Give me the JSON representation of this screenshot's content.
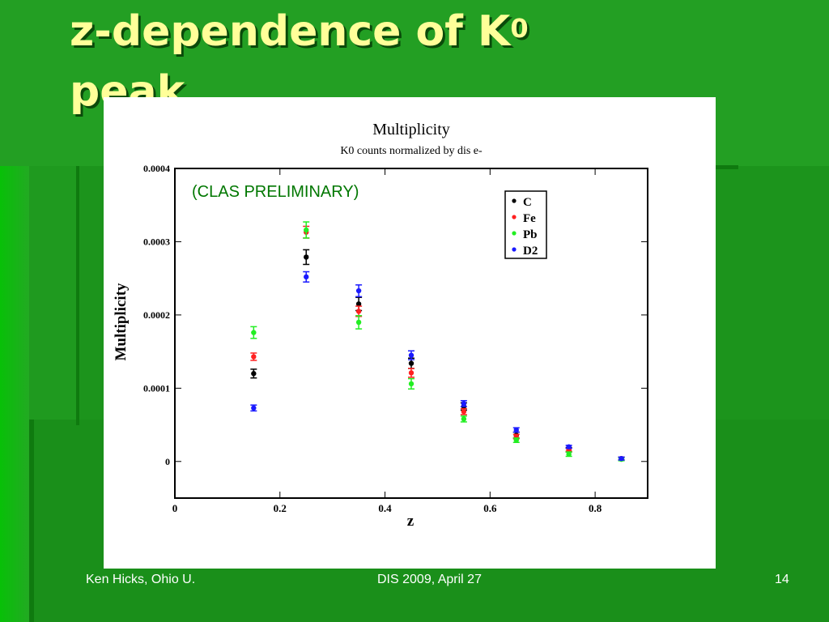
{
  "slide": {
    "title_main": "z-dependence of K",
    "title_sup": "0",
    "title_line2": "peak"
  },
  "footer": {
    "left": "Ken Hicks, Ohio U.",
    "center": "DIS 2009, April 27",
    "right": "14"
  },
  "colors": {
    "background": "#1f9a1f",
    "title": "#ffff99",
    "annotation": "#007700"
  },
  "chart_data": {
    "type": "scatter",
    "title": "Multiplicity",
    "subtitle": "K0 counts normalized by dis e-",
    "xlabel": "z",
    "ylabel": "Multiplicity",
    "annotation": "(CLAS PRELIMINARY)",
    "xlim": [
      0,
      0.9
    ],
    "ylim": [
      -5e-05,
      0.0004
    ],
    "x_ticks": [
      {
        "value": 0,
        "label": "0"
      },
      {
        "value": 0.2,
        "label": "0.2"
      },
      {
        "value": 0.4,
        "label": "0.4"
      },
      {
        "value": 0.6,
        "label": "0.6"
      },
      {
        "value": 0.8,
        "label": "0.8"
      }
    ],
    "y_ticks": [
      {
        "value": 0,
        "label": "0"
      },
      {
        "value": 0.0001,
        "label": "0.0001"
      },
      {
        "value": 0.0002,
        "label": "0.0002"
      },
      {
        "value": 0.0003,
        "label": "0.0003"
      },
      {
        "value": 0.0004,
        "label": "0.0004"
      }
    ],
    "legend_position": "top-right",
    "grid": false,
    "series": [
      {
        "name": "C",
        "color": "#000000",
        "points": [
          {
            "x": 0.15,
            "y": 0.00012,
            "err": 6e-06
          },
          {
            "x": 0.25,
            "y": 0.000279,
            "err": 1e-05
          },
          {
            "x": 0.35,
            "y": 0.000215,
            "err": 9e-06
          },
          {
            "x": 0.45,
            "y": 0.000134,
            "err": 7e-06
          },
          {
            "x": 0.55,
            "y": 7.5e-05,
            "err": 5e-06
          },
          {
            "x": 0.65,
            "y": 3.6e-05,
            "err": 4e-06
          },
          {
            "x": 0.75,
            "y": 1.6e-05,
            "err": 3e-06
          },
          {
            "x": 0.85,
            "y": 4e-06,
            "err": 2e-06
          }
        ]
      },
      {
        "name": "Fe",
        "color": "#ff2020",
        "points": [
          {
            "x": 0.15,
            "y": 0.000143,
            "err": 5e-06
          },
          {
            "x": 0.25,
            "y": 0.000313,
            "err": 8e-06
          },
          {
            "x": 0.35,
            "y": 0.000205,
            "err": 7e-06
          },
          {
            "x": 0.45,
            "y": 0.000121,
            "err": 6e-06
          },
          {
            "x": 0.55,
            "y": 6.8e-05,
            "err": 4e-06
          },
          {
            "x": 0.65,
            "y": 3.4e-05,
            "err": 3e-06
          },
          {
            "x": 0.75,
            "y": 1.6e-05,
            "err": 2e-06
          },
          {
            "x": 0.85,
            "y": 4e-06,
            "err": 2e-06
          }
        ]
      },
      {
        "name": "Pb",
        "color": "#22ee22",
        "points": [
          {
            "x": 0.15,
            "y": 0.000176,
            "err": 8e-06
          },
          {
            "x": 0.25,
            "y": 0.000316,
            "err": 1.1e-05
          },
          {
            "x": 0.35,
            "y": 0.00019,
            "err": 9e-06
          },
          {
            "x": 0.45,
            "y": 0.000106,
            "err": 7e-06
          },
          {
            "x": 0.55,
            "y": 5.8e-05,
            "err": 4e-06
          },
          {
            "x": 0.65,
            "y": 2.9e-05,
            "err": 3e-06
          },
          {
            "x": 0.75,
            "y": 1e-05,
            "err": 3e-06
          },
          {
            "x": 0.85,
            "y": 3e-06,
            "err": 2e-06
          }
        ]
      },
      {
        "name": "D2",
        "color": "#1a1aff",
        "points": [
          {
            "x": 0.15,
            "y": 7.3e-05,
            "err": 4e-06
          },
          {
            "x": 0.25,
            "y": 0.000252,
            "err": 7e-06
          },
          {
            "x": 0.35,
            "y": 0.000233,
            "err": 8e-06
          },
          {
            "x": 0.45,
            "y": 0.000145,
            "err": 6e-06
          },
          {
            "x": 0.55,
            "y": 7.9e-05,
            "err": 4e-06
          },
          {
            "x": 0.65,
            "y": 4.3e-05,
            "err": 3e-06
          },
          {
            "x": 0.75,
            "y": 2e-05,
            "err": 2e-06
          },
          {
            "x": 0.85,
            "y": 4e-06,
            "err": 2e-06
          }
        ]
      }
    ]
  }
}
